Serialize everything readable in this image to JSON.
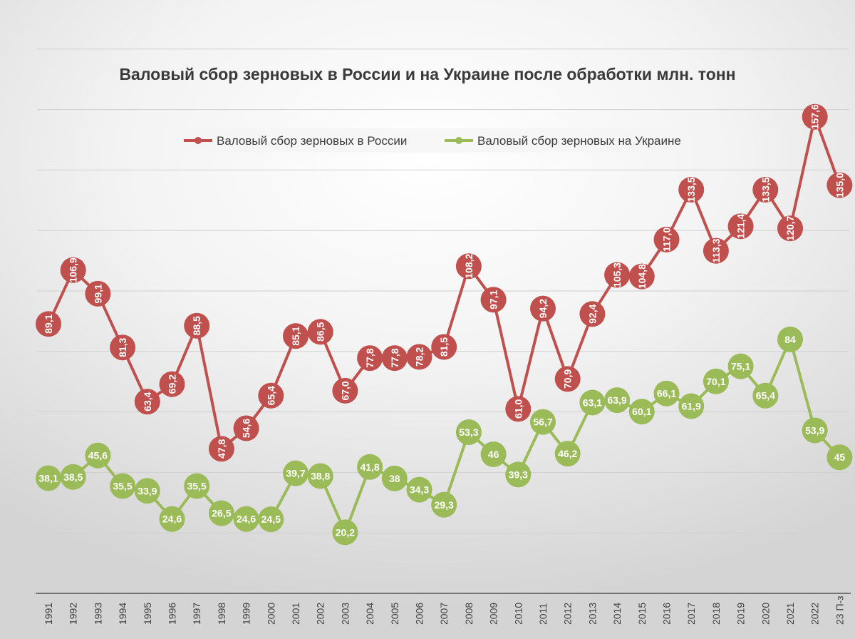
{
  "chart_data": {
    "type": "line",
    "title": "Валовый сбор зерновых в России и на Украине после обработки млн. тонн",
    "xlabel": "",
    "ylabel": "",
    "categories": [
      "1991",
      "1992",
      "1993",
      "1994",
      "1995",
      "1996",
      "1997",
      "1998",
      "1999",
      "2000",
      "2001",
      "2002",
      "2003",
      "2004",
      "2005",
      "2006",
      "2007",
      "2008",
      "2009",
      "2010",
      "2011",
      "2012",
      "2013",
      "2014",
      "2015",
      "2016",
      "2017",
      "2018",
      "2019",
      "2020",
      "2021",
      "2022",
      "23 П-з"
    ],
    "ylim": [
      0,
      180
    ],
    "grid": true,
    "legend_position": "top",
    "series": [
      {
        "name": "Валовый сбор зерновых в России",
        "color": "#c0504d",
        "values": [
          89.1,
          106.9,
          99.1,
          81.3,
          63.4,
          69.2,
          88.5,
          47.8,
          54.6,
          65.4,
          85.1,
          86.5,
          67.0,
          77.8,
          77.8,
          78.2,
          81.5,
          108.2,
          97.1,
          61.0,
          94.2,
          70.9,
          92.4,
          105.3,
          104.8,
          117.0,
          133.5,
          113.3,
          121.4,
          133.5,
          120.7,
          157.6,
          135.0
        ],
        "labels": [
          "89,1",
          "106,9",
          "99,1",
          "81,3",
          "63,4",
          "69,2",
          "88,5",
          "47,8",
          "54,6",
          "65,4",
          "85,1",
          "86,5",
          "67,0",
          "77,8",
          "77,8",
          "78,2",
          "81,5",
          "108,2",
          "97,1",
          "61,0",
          "94,2",
          "70,9",
          "92,4",
          "105,3",
          "104,8",
          "117,0",
          "133,5",
          "113,3",
          "121,4",
          "133,5",
          "120,7",
          "157,6",
          "135,0"
        ]
      },
      {
        "name": "Валовый сбор зерновых на Украине",
        "color": "#9bbb59",
        "values": [
          38.1,
          38.5,
          45.6,
          35.5,
          33.9,
          24.6,
          35.5,
          26.5,
          24.6,
          24.5,
          39.7,
          38.8,
          20.2,
          41.8,
          38,
          34.3,
          29.3,
          53.3,
          46,
          39.3,
          56.7,
          46.2,
          63.1,
          63.9,
          60.1,
          66.1,
          61.9,
          70.1,
          75.1,
          65.4,
          84,
          53.9,
          45
        ],
        "labels": [
          "38,1",
          "38,5",
          "45,6",
          "35,5",
          "33,9",
          "24,6",
          "35,5",
          "26,5",
          "24,6",
          "24,5",
          "39,7",
          "38,8",
          "20,2",
          "41,8",
          "38",
          "34,3",
          "29,3",
          "53,3",
          "46",
          "39,3",
          "56,7",
          "46,2",
          "63,1",
          "63,9",
          "60,1",
          "66,1",
          "61,9",
          "70,1",
          "75,1",
          "65,4",
          "84",
          "53,9",
          "45"
        ]
      }
    ]
  }
}
